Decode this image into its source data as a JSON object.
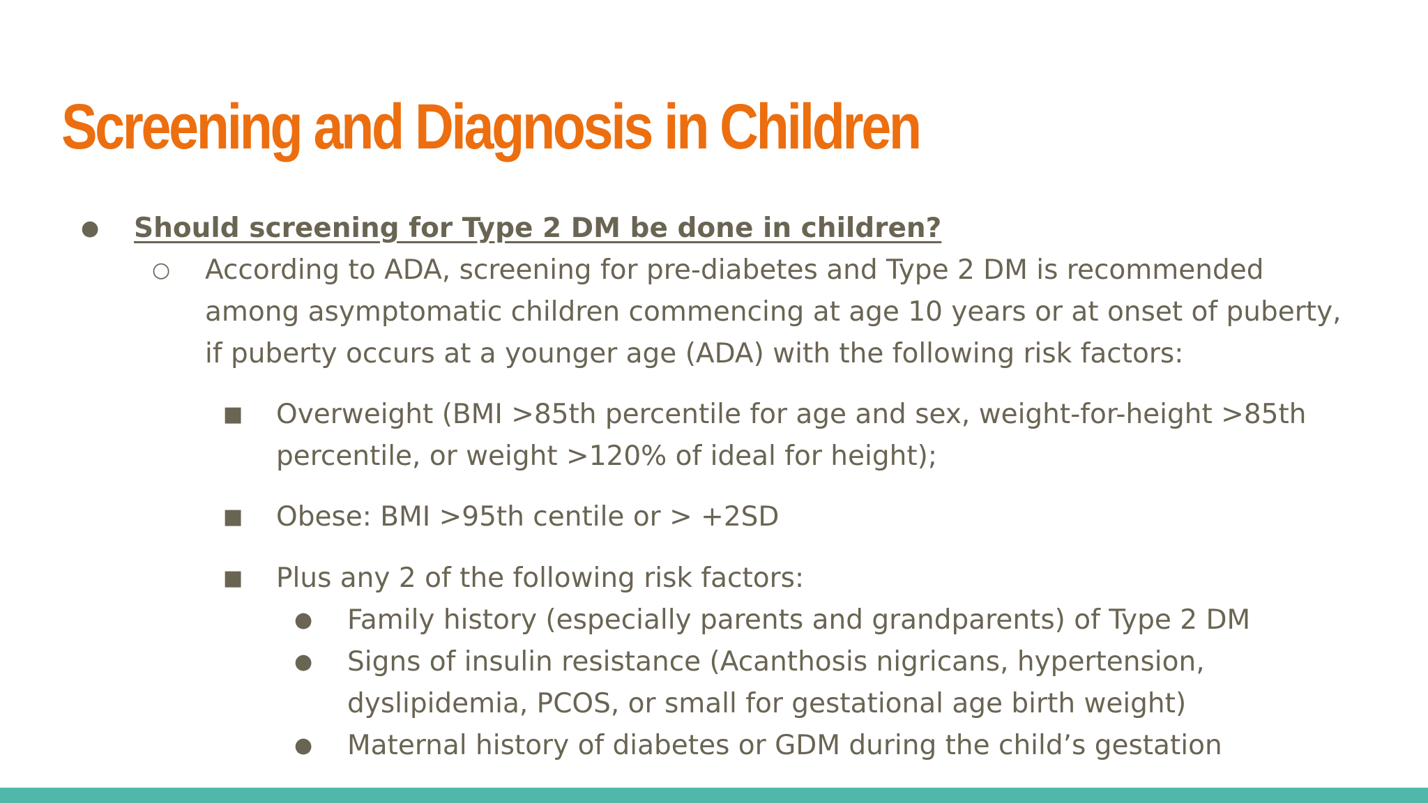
{
  "theme": {
    "title_color": "#ec6e0f",
    "text_color": "#6a6453",
    "bar_color": "#4fb8ab"
  },
  "slide": {
    "title": "Screening and Diagnosis in Children",
    "bullets": [
      {
        "level": 1,
        "marker": "●",
        "text": "Should screening for Type 2 DM be done in children?"
      },
      {
        "level": 2,
        "marker": "○",
        "text": "According to ADA, screening for pre-diabetes and Type 2 DM is recommended among asymptomatic children commencing at age 10 years or at onset of puberty, if puberty occurs at a younger age (ADA) with the following risk factors:"
      },
      {
        "level": 3,
        "marker": "■",
        "text": "Overweight (BMI >85th percentile for age and sex, weight-for-height >85th percentile, or weight >120% of ideal for height);"
      },
      {
        "level": 3,
        "marker": "■",
        "text": "Obese: BMI >95th centile or > +2SD"
      },
      {
        "level": 3,
        "marker": "■",
        "text": "Plus any 2 of the following risk factors:"
      },
      {
        "level": 4,
        "marker": "●",
        "text": "Family history (especially parents and grandparents) of Type 2 DM"
      },
      {
        "level": 4,
        "marker": "●",
        "text": "Signs of insulin resistance (Acanthosis nigricans, hypertension, dyslipidemia, PCOS, or small for gestational age birth weight)"
      },
      {
        "level": 4,
        "marker": "●",
        "text": "Maternal history of diabetes or GDM during the child’s gestation"
      }
    ]
  }
}
